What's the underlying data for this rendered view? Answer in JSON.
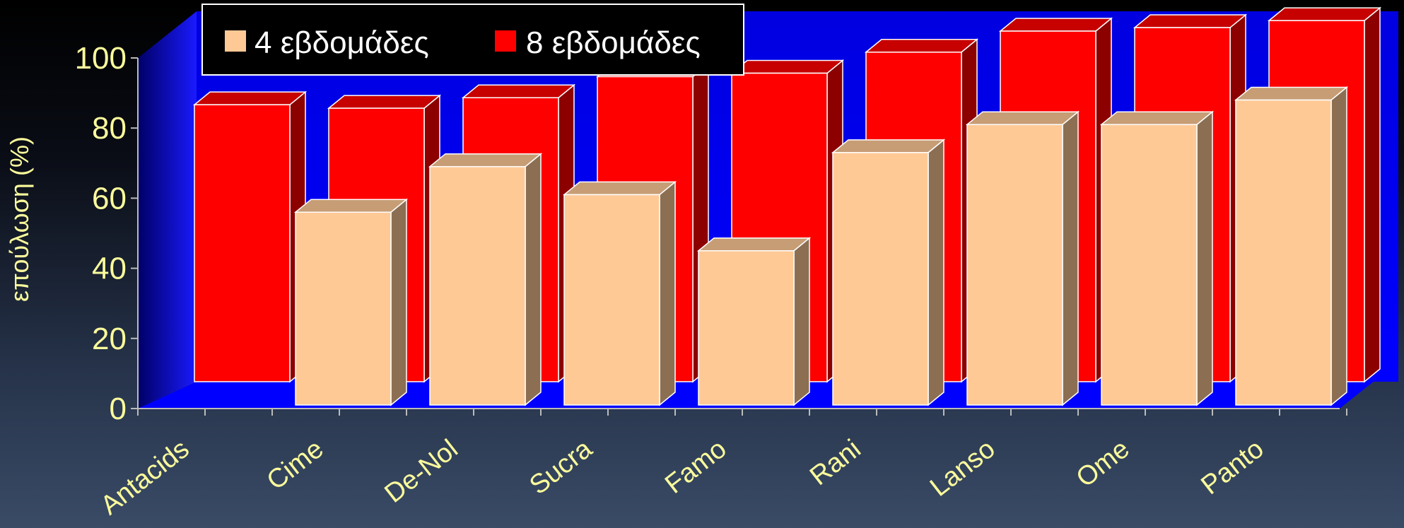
{
  "chart_data": {
    "type": "bar",
    "ylabel": "επούλωση (%)",
    "ylim": [
      0,
      100
    ],
    "yticks": [
      0,
      20,
      40,
      60,
      80,
      100
    ],
    "categories": [
      "Antacids",
      "Cime",
      "De-Nol",
      "Sucra",
      "Famo",
      "Rani",
      "Lanso",
      "Ome",
      "Panto"
    ],
    "series": [
      {
        "name": "4 εβδομάδες",
        "values": [
          null,
          55,
          68,
          60,
          44,
          72,
          80,
          80,
          87
        ],
        "color": "#ffc996"
      },
      {
        "name": "8 εβδομάδες",
        "values": [
          79,
          78,
          81,
          87,
          88,
          94,
          100,
          101,
          103
        ],
        "color": "#ff0000"
      }
    ],
    "legend": "top-left",
    "grid": false,
    "colors": {
      "back_wall": "#0000ff",
      "floor": "#0000ff",
      "text": "#fbfb9c"
    }
  }
}
